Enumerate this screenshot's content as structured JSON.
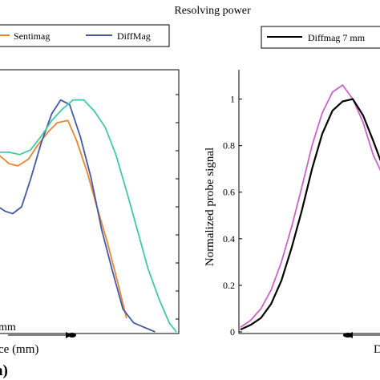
{
  "figure": {
    "title": "Resolving power",
    "panel_label": "a)"
  },
  "chart_data": [
    {
      "type": "line",
      "title": "",
      "xlabel": "ce (mm)",
      "ylabel": "",
      "annotation": "mm",
      "legend": {
        "placement": "top",
        "entries": [
          "Sentimag",
          "DiffMag"
        ]
      },
      "yticks": [
        "",
        "",
        "",
        "",
        "",
        "",
        ""
      ],
      "ylim": [
        0,
        1.1
      ],
      "xlim": [
        0,
        1
      ],
      "series": [
        {
          "name": "Sentimag",
          "color": "#e8862f",
          "x": [
            0.0,
            0.06,
            0.11,
            0.17,
            0.22,
            0.28,
            0.33,
            0.39,
            0.44,
            0.5,
            0.55,
            0.61,
            0.67,
            0.72
          ],
          "y": [
            0.78,
            0.74,
            0.73,
            0.76,
            0.82,
            0.88,
            0.92,
            0.93,
            0.84,
            0.7,
            0.56,
            0.4,
            0.22,
            0.06
          ]
        },
        {
          "name": "DiffMag",
          "color": "#4459a6",
          "x": [
            0.0,
            0.04,
            0.08,
            0.13,
            0.18,
            0.24,
            0.3,
            0.35,
            0.4,
            0.46,
            0.52,
            0.58,
            0.64,
            0.7,
            0.76,
            0.82,
            0.88
          ],
          "y": [
            0.55,
            0.53,
            0.52,
            0.55,
            0.67,
            0.83,
            0.96,
            1.02,
            1.0,
            0.86,
            0.68,
            0.45,
            0.27,
            0.1,
            0.04,
            0.02,
            0.0
          ]
        },
        {
          "name": "",
          "color": "#3fc9a6",
          "x": [
            0.0,
            0.06,
            0.12,
            0.18,
            0.24,
            0.3,
            0.36,
            0.42,
            0.48,
            0.54,
            0.6,
            0.66,
            0.72,
            0.78,
            0.84,
            0.9,
            0.96,
            1.0
          ],
          "y": [
            0.79,
            0.79,
            0.78,
            0.8,
            0.86,
            0.93,
            0.98,
            1.02,
            1.02,
            0.97,
            0.9,
            0.78,
            0.62,
            0.45,
            0.28,
            0.15,
            0.04,
            0.0
          ]
        }
      ]
    },
    {
      "type": "line",
      "title": "",
      "xlabel": "D",
      "ylabel": "Normalized probe signal",
      "legend": {
        "placement": "top",
        "entries": [
          "Diffmag 7 mm"
        ]
      },
      "yticks": [
        "0",
        "0.2",
        "0.4",
        "0.6",
        "0.8",
        "1"
      ],
      "ytick_values": [
        0,
        0.2,
        0.4,
        0.6,
        0.8,
        1
      ],
      "ylim": [
        0,
        1.15
      ],
      "xlim": [
        0,
        1
      ],
      "series": [
        {
          "name": "",
          "color": "#c964c8",
          "x": [
            0.0,
            0.07,
            0.14,
            0.21,
            0.28,
            0.35,
            0.42,
            0.49,
            0.56,
            0.63,
            0.7,
            0.77,
            0.84,
            0.91,
            0.97
          ],
          "y": [
            0.02,
            0.05,
            0.1,
            0.18,
            0.3,
            0.45,
            0.62,
            0.8,
            0.94,
            1.03,
            1.06,
            1.0,
            0.9,
            0.76,
            0.68
          ]
        },
        {
          "name": "Diffmag 7 mm",
          "color": "#000000",
          "x": [
            0.0,
            0.07,
            0.14,
            0.21,
            0.28,
            0.35,
            0.42,
            0.49,
            0.56,
            0.63,
            0.7,
            0.77,
            0.84,
            0.91,
            0.97
          ],
          "y": [
            0.01,
            0.03,
            0.06,
            0.12,
            0.22,
            0.36,
            0.52,
            0.7,
            0.85,
            0.95,
            0.99,
            1.0,
            0.93,
            0.82,
            0.72
          ]
        }
      ]
    }
  ]
}
